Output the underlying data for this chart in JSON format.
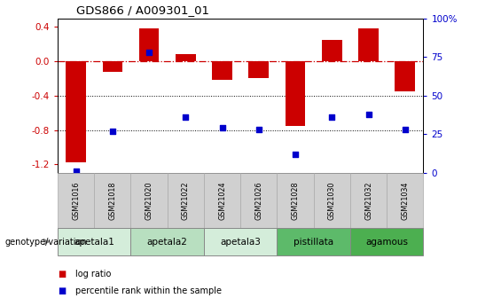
{
  "title": "GDS866 / A009301_01",
  "samples": [
    "GSM21016",
    "GSM21018",
    "GSM21020",
    "GSM21022",
    "GSM21024",
    "GSM21026",
    "GSM21028",
    "GSM21030",
    "GSM21032",
    "GSM21034"
  ],
  "log_ratio": [
    -1.18,
    -0.12,
    0.38,
    0.08,
    -0.22,
    -0.2,
    -0.75,
    0.25,
    0.38,
    -0.35
  ],
  "percentile_rank": [
    1,
    27,
    78,
    36,
    29,
    28,
    12,
    36,
    38,
    28
  ],
  "groups": [
    {
      "label": "apetala1",
      "samples": [
        0,
        1
      ],
      "color": "#d4edda"
    },
    {
      "label": "apetala2",
      "samples": [
        2,
        3
      ],
      "color": "#b8dfc0"
    },
    {
      "label": "apetala3",
      "samples": [
        4,
        5
      ],
      "color": "#d4edda"
    },
    {
      "label": "pistillata",
      "samples": [
        6,
        7
      ],
      "color": "#5dba6a"
    },
    {
      "label": "agamous",
      "samples": [
        8,
        9
      ],
      "color": "#4caf50"
    }
  ],
  "ylim_left": [
    -1.3,
    0.5
  ],
  "ylim_right": [
    0,
    100
  ],
  "bar_color": "#cc0000",
  "dot_color": "#0000cc",
  "zero_line_color": "#cc0000",
  "grid_color": "#000000",
  "right_ticks": [
    0,
    25,
    50,
    75,
    100
  ],
  "right_tick_labels": [
    "0",
    "25",
    "50",
    "75",
    "100%"
  ],
  "left_ticks": [
    -1.2,
    -0.8,
    -0.4,
    0.0,
    0.4
  ],
  "legend_items": [
    "log ratio",
    "percentile rank within the sample"
  ],
  "sample_box_color": "#d0d0d0",
  "sample_box_edge": "#aaaaaa"
}
